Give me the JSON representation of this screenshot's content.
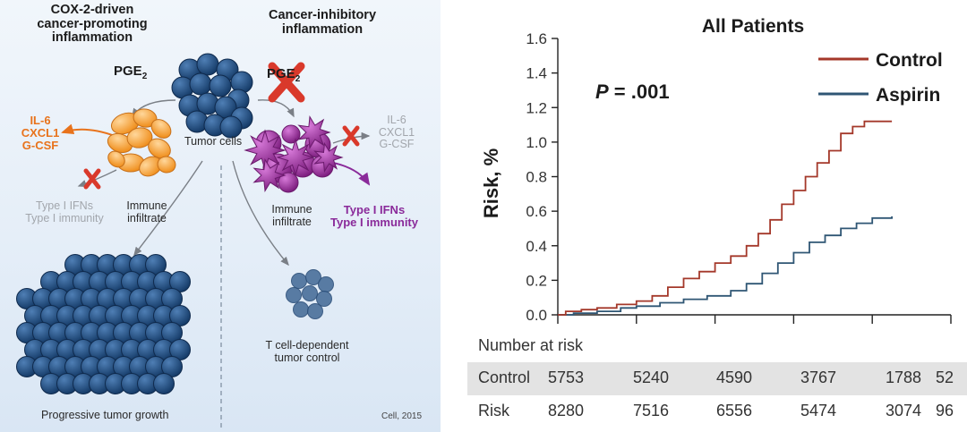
{
  "illustration": {
    "left_heading": [
      "COX-2-driven",
      "cancer-promoting",
      "inflammation"
    ],
    "right_heading": [
      "Cancer-inhibitory",
      "inflammation"
    ],
    "pge_base": "PGE",
    "pge_sub": "2",
    "tumor_cells": "Tumor cells",
    "left_cytokines": [
      "IL-6",
      "CXCL1",
      "G-CSF"
    ],
    "right_cytokines": [
      "IL-6",
      "CXCL1",
      "G-CSF"
    ],
    "left_ifn": [
      "Type I IFNs",
      "Type I immunity"
    ],
    "right_ifn": [
      "Type I IFNs",
      "Type I immunity"
    ],
    "left_infiltrate": [
      "Immune",
      "infiltrate"
    ],
    "right_infiltrate": [
      "Immune",
      "infiltrate"
    ],
    "progressive": "Progressive tumor growth",
    "tcell": [
      "T cell-dependent",
      "tumor control"
    ],
    "citation": "Cell, 2015",
    "colors": {
      "orange": "#e8731c",
      "purple": "#8a2a9a",
      "tumor_blue": "#2c5a8e",
      "cross_red": "#d9392b"
    }
  },
  "chart_data": {
    "type": "line",
    "title": "All Patients",
    "xlabel": "",
    "ylabel": "Risk, %",
    "ylim": [
      0,
      1.6
    ],
    "yticks": [
      "0.0",
      "0.2",
      "0.4",
      "0.6",
      "0.8",
      "1.0",
      "1.2",
      "1.4",
      "1.6"
    ],
    "xlim": [
      0,
      5
    ],
    "annotation": {
      "italic": "P",
      "text": " = .001"
    },
    "legend_position": "top-right",
    "series": [
      {
        "name": "Control",
        "color": "#a4382a",
        "points": [
          [
            0,
            0
          ],
          [
            0.1,
            0.02
          ],
          [
            0.3,
            0.03
          ],
          [
            0.5,
            0.04
          ],
          [
            0.75,
            0.06
          ],
          [
            1.0,
            0.08
          ],
          [
            1.2,
            0.11
          ],
          [
            1.4,
            0.16
          ],
          [
            1.6,
            0.21
          ],
          [
            1.8,
            0.25
          ],
          [
            2.0,
            0.3
          ],
          [
            2.2,
            0.34
          ],
          [
            2.4,
            0.4
          ],
          [
            2.55,
            0.47
          ],
          [
            2.7,
            0.55
          ],
          [
            2.85,
            0.64
          ],
          [
            3.0,
            0.72
          ],
          [
            3.15,
            0.8
          ],
          [
            3.3,
            0.88
          ],
          [
            3.45,
            0.95
          ],
          [
            3.6,
            1.05
          ],
          [
            3.75,
            1.09
          ],
          [
            3.9,
            1.12
          ],
          [
            4.25,
            1.12
          ]
        ]
      },
      {
        "name": "Aspirin",
        "color": "#2f5674",
        "points": [
          [
            0,
            0
          ],
          [
            0.2,
            0.01
          ],
          [
            0.5,
            0.02
          ],
          [
            0.8,
            0.04
          ],
          [
            1.0,
            0.05
          ],
          [
            1.3,
            0.07
          ],
          [
            1.6,
            0.09
          ],
          [
            1.9,
            0.11
          ],
          [
            2.2,
            0.14
          ],
          [
            2.4,
            0.18
          ],
          [
            2.6,
            0.24
          ],
          [
            2.8,
            0.3
          ],
          [
            3.0,
            0.36
          ],
          [
            3.2,
            0.42
          ],
          [
            3.4,
            0.46
          ],
          [
            3.6,
            0.5
          ],
          [
            3.8,
            0.53
          ],
          [
            4.0,
            0.56
          ],
          [
            4.25,
            0.57
          ]
        ]
      }
    ]
  },
  "risk_table": {
    "title": "Number at risk",
    "rows": [
      {
        "label": "Control",
        "values": [
          "5753",
          "5240",
          "4590",
          "3767",
          "1788",
          "52"
        ]
      },
      {
        "label": "Risk",
        "values": [
          "8280",
          "7516",
          "6556",
          "5474",
          "3074",
          "96"
        ]
      }
    ]
  }
}
